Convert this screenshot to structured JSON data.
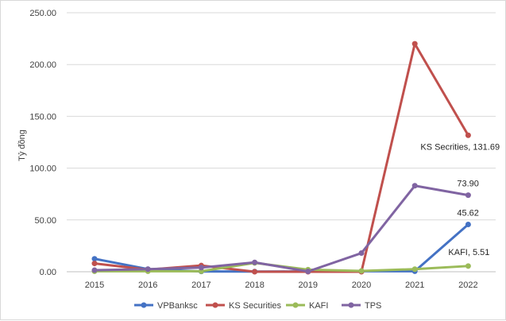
{
  "chart_data": {
    "type": "line",
    "title": "",
    "xlabel": "",
    "ylabel": "Tỷ đồng",
    "ylim": [
      0,
      250
    ],
    "yticks": [
      0,
      50,
      100,
      150,
      200,
      250
    ],
    "ytick_labels": [
      "0.00",
      "50.00",
      "100.00",
      "150.00",
      "200.00",
      "250.00"
    ],
    "categories": [
      "2015",
      "2016",
      "2017",
      "2018",
      "2019",
      "2020",
      "2021",
      "2022"
    ],
    "grid": "horizontal",
    "legend_position": "bottom",
    "series": [
      {
        "name": "VPBanksc",
        "color": "#4472c4",
        "values": [
          12.5,
          2.5,
          0.3,
          0.2,
          0.3,
          0.5,
          0.5,
          45.62
        ]
      },
      {
        "name": "KS Securities",
        "color": "#c0504d",
        "values": [
          8.0,
          2.0,
          6.0,
          0.0,
          0.0,
          0.0,
          220.0,
          131.69
        ]
      },
      {
        "name": "KAFI",
        "color": "#9bbb59",
        "values": [
          0.5,
          0.5,
          0.5,
          8.5,
          2.0,
          0.8,
          2.5,
          5.51
        ]
      },
      {
        "name": "TPS",
        "color": "#8064a2",
        "values": [
          1.5,
          2.5,
          4.0,
          9.0,
          0.3,
          18.0,
          83.0,
          73.9
        ]
      }
    ],
    "annotations": [
      {
        "series": 1,
        "index": 7,
        "text": "KS Secrities, 131.69"
      },
      {
        "series": 3,
        "index": 7,
        "text": "73.90"
      },
      {
        "series": 0,
        "index": 7,
        "text": "45.62"
      },
      {
        "series": 2,
        "index": 7,
        "text": "KAFI, 5.51"
      }
    ]
  }
}
